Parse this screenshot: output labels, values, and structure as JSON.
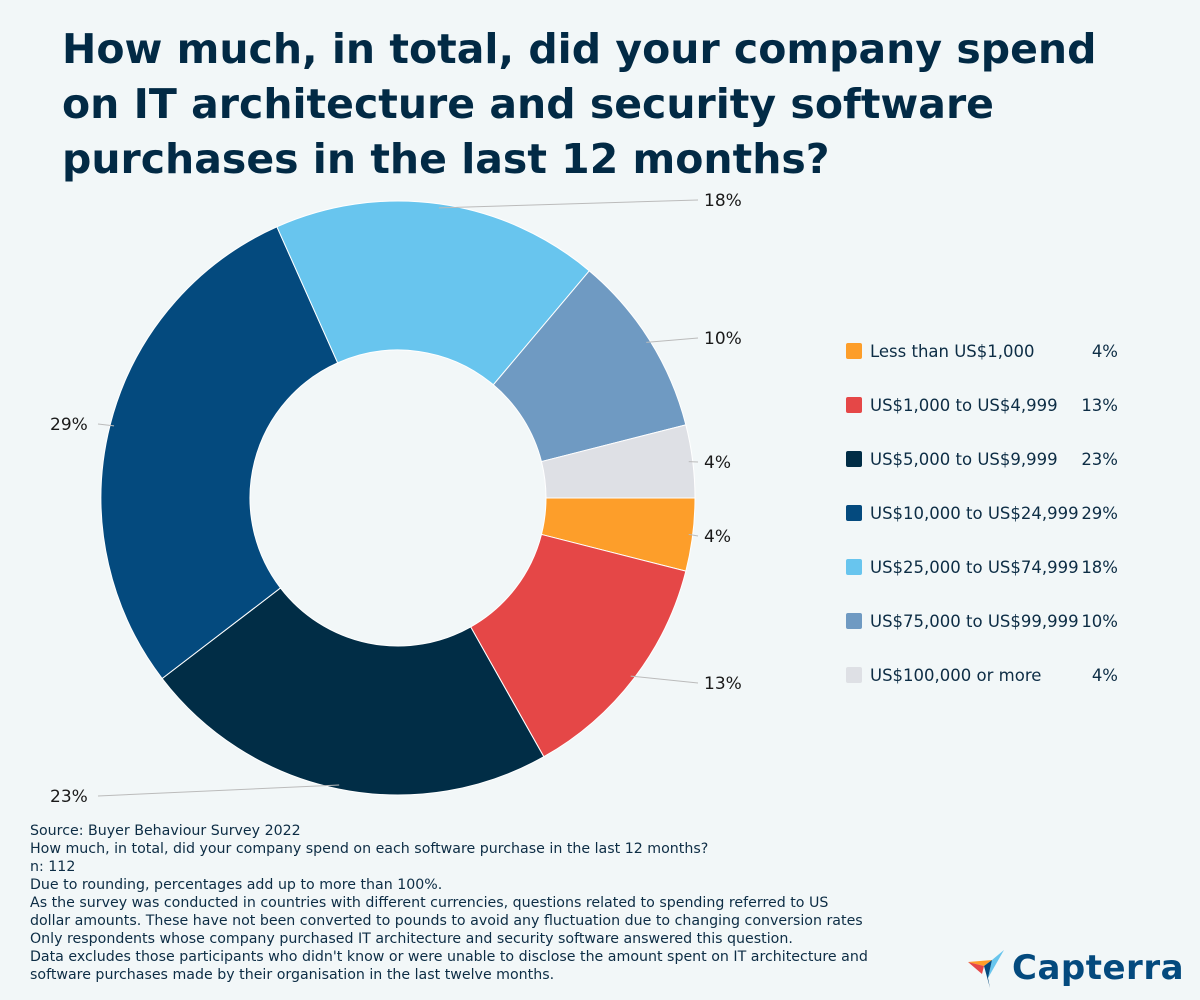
{
  "chart_data": {
    "type": "pie",
    "title": "How much, in total, did your company spend on IT architecture and security software purchases in the last 12 months?",
    "donut": true,
    "legend_position": "right",
    "categories": [
      "Less than US$1,000",
      "US$1,000 to US$4,999",
      "US$5,000 to US$9,999",
      "US$10,000 to US$24,999",
      "US$25,000 to US$74,999",
      "US$75,000 to US$99,999",
      "US$100,000 or more"
    ],
    "values": [
      4,
      13,
      23,
      29,
      18,
      10,
      4
    ],
    "value_labels": [
      "4%",
      "13%",
      "23%",
      "29%",
      "18%",
      "10%",
      "4%"
    ],
    "colors": [
      "#fd9e2a",
      "#e54747",
      "#012d46",
      "#044a7e",
      "#68c5ee",
      "#6f9ac2",
      "#dee0e5"
    ]
  },
  "notes": [
    "Source: Buyer Behaviour Survey 2022",
    "How much, in total, did your company spend on each software purchase in the last 12 months?",
    "n: 112",
    "Due to rounding, percentages add up to more than 100%.",
    "As the survey was conducted in countries with different currencies, questions related to spending referred to US",
    "dollar amounts. These have not been converted to pounds to avoid any fluctuation due to changing conversion rates",
    "Only respondents whose company purchased IT architecture and security software answered this question.",
    "Data excludes those participants who didn't know or were unable to disclose the amount spent on IT architecture and",
    "software purchases made by their organisation in the last twelve months."
  ],
  "logo": {
    "text": "Capterra"
  }
}
